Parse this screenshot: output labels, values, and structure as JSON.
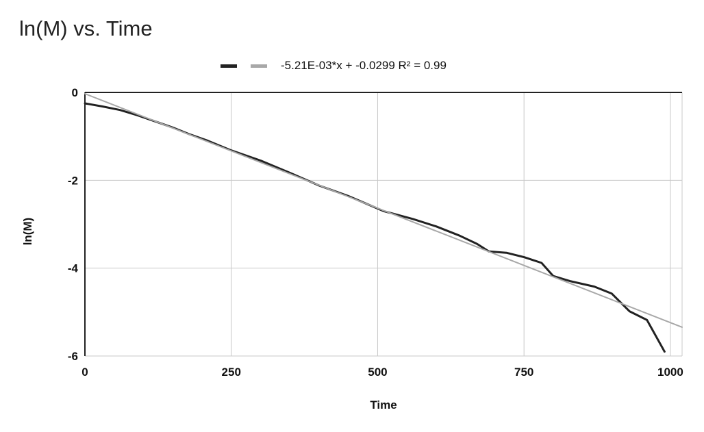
{
  "chart_data": {
    "type": "line",
    "title": "ln(M) vs. Time",
    "xlabel": "Time",
    "ylabel": "ln(M)",
    "xlim": [
      0,
      1020
    ],
    "ylim": [
      -6,
      0
    ],
    "xticks": [
      0,
      250,
      500,
      750,
      1000
    ],
    "yticks": [
      0,
      -2,
      -4,
      -6
    ],
    "grid": true,
    "legend_position": "top",
    "series": [
      {
        "color": "#222222",
        "x": [
          0,
          30,
          60,
          90,
          120,
          150,
          180,
          210,
          250,
          300,
          350,
          400,
          450,
          510,
          560,
          600,
          640,
          670,
          690,
          720,
          750,
          780,
          800,
          830,
          870,
          900,
          930,
          960,
          990
        ],
        "y": [
          -0.25,
          -0.32,
          -0.4,
          -0.52,
          -0.66,
          -0.8,
          -0.96,
          -1.1,
          -1.32,
          -1.55,
          -1.83,
          -2.12,
          -2.36,
          -2.7,
          -2.88,
          -3.05,
          -3.26,
          -3.45,
          -3.62,
          -3.65,
          -3.75,
          -3.88,
          -4.18,
          -4.3,
          -4.42,
          -4.58,
          -4.98,
          -5.18,
          -5.9
        ]
      },
      {
        "name": "-5.21E-03*x + -0.0299 R² = 0.99",
        "color": "#a8a8a8",
        "type": "trendline",
        "slope": -0.00521,
        "intercept": -0.0299,
        "x": [
          0,
          1020
        ],
        "y": [
          -0.0299,
          -5.3441
        ]
      }
    ]
  }
}
